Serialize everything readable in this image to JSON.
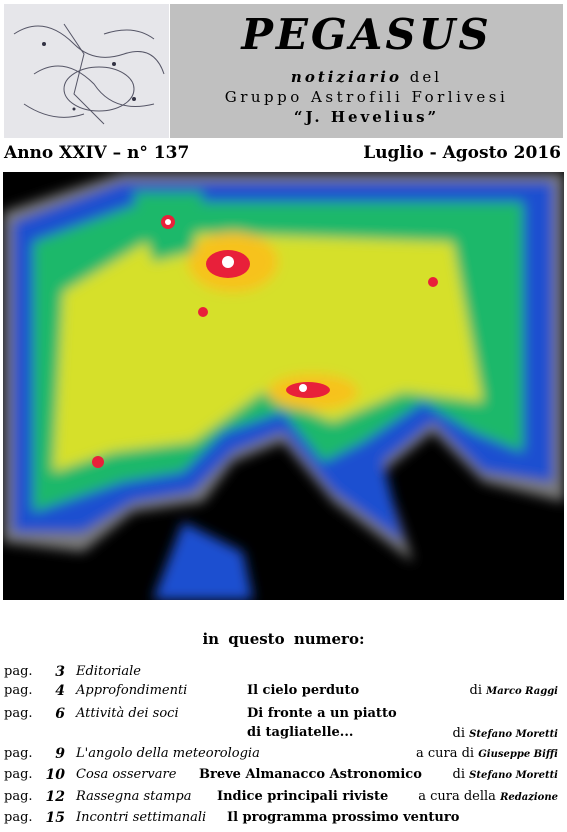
{
  "header": {
    "title": "PEGASUS",
    "subtitle_lead": "notiziario",
    "subtitle_tail": "del",
    "group": "Gruppo Astrofili Forlivesi",
    "named_after": "“J. Hevelius”"
  },
  "issue": {
    "number": "Anno XXIV – n° 137",
    "period": "Luglio - Agosto 2016"
  },
  "toc": {
    "heading": "in questo numero:",
    "rows": [
      {
        "pag": "pag.",
        "page": "3",
        "section": "Editoriale"
      },
      {
        "pag": "pag.",
        "page": "4",
        "section": "Approfondimenti",
        "title": "Il cielo perduto",
        "credit": "di",
        "author": "Marco Raggi"
      },
      {
        "pag": "pag.",
        "page": "6",
        "section": "Attività dei soci",
        "title": "Di fronte a un piatto",
        "title_continued": "di tagliatelle...",
        "credit": "di",
        "author": "Stefano Moretti"
      },
      {
        "pag": "pag.",
        "page": "9",
        "section": "L'angolo della meteorologia",
        "credit": "a cura di",
        "author": "Giuseppe Biffi"
      },
      {
        "pag": "pag.",
        "page": "10",
        "section": "Cosa osservare",
        "title": "Breve Almanacco Astronomico",
        "credit": "di",
        "author": "Stefano Moretti"
      },
      {
        "pag": "pag.",
        "page": "12",
        "section": "Rassegna stampa",
        "title": "Indice principali riviste",
        "credit": "a cura della",
        "author": "Redazione"
      },
      {
        "pag": "pag.",
        "page": "15",
        "section": "Incontri settimanali",
        "title": "Il programma prossimo venturo"
      }
    ]
  }
}
